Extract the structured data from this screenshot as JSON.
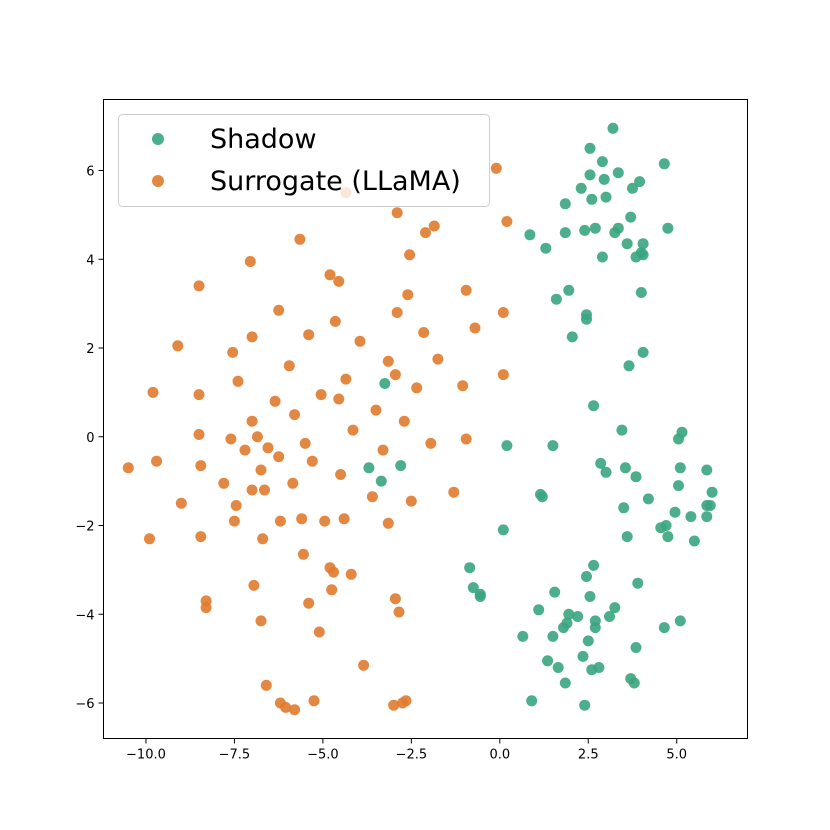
{
  "chart_data": {
    "type": "scatter",
    "title": "",
    "xlabel": "",
    "ylabel": "",
    "xlim": [
      -11.2,
      7.0
    ],
    "ylim": [
      -6.8,
      7.6
    ],
    "xticks": [
      -10.0,
      -7.5,
      -5.0,
      -2.5,
      0.0,
      2.5,
      5.0
    ],
    "xtick_labels": [
      "−10.0",
      "−7.5",
      "−5.0",
      "−2.5",
      "0.0",
      "2.5",
      "5.0"
    ],
    "yticks": [
      -6,
      -4,
      -2,
      0,
      2,
      4,
      6
    ],
    "ytick_labels": [
      "−6",
      "−4",
      "−2",
      "0",
      "2",
      "4",
      "6"
    ],
    "grid": false,
    "legend_position": "top-left",
    "series": [
      {
        "name": "Surrogate (LLaMA)",
        "color": "#e07b2f",
        "points": [
          [
            -10.5,
            -0.7
          ],
          [
            -9.9,
            -2.3
          ],
          [
            -9.8,
            1.0
          ],
          [
            -9.7,
            -0.55
          ],
          [
            -9.1,
            2.05
          ],
          [
            -9.0,
            -1.5
          ],
          [
            -8.5,
            3.4
          ],
          [
            -8.5,
            0.95
          ],
          [
            -8.5,
            0.05
          ],
          [
            -8.45,
            -0.65
          ],
          [
            -8.45,
            -2.25
          ],
          [
            -8.3,
            -3.7
          ],
          [
            -8.3,
            -3.85
          ],
          [
            -7.8,
            -1.05
          ],
          [
            -7.6,
            -0.05
          ],
          [
            -7.55,
            1.9
          ],
          [
            -7.5,
            -1.9
          ],
          [
            -7.45,
            -1.55
          ],
          [
            -7.4,
            1.25
          ],
          [
            -7.2,
            -0.3
          ],
          [
            -7.05,
            3.95
          ],
          [
            -7.0,
            2.25
          ],
          [
            -7.0,
            0.35
          ],
          [
            -7.0,
            -1.2
          ],
          [
            -6.95,
            -3.35
          ],
          [
            -6.85,
            0.0
          ],
          [
            -6.75,
            -4.15
          ],
          [
            -6.75,
            -0.75
          ],
          [
            -6.7,
            -2.3
          ],
          [
            -6.65,
            -1.2
          ],
          [
            -6.6,
            -5.6
          ],
          [
            -6.55,
            -0.25
          ],
          [
            -6.35,
            0.8
          ],
          [
            -6.25,
            2.85
          ],
          [
            -6.25,
            -0.45
          ],
          [
            -6.2,
            -1.9
          ],
          [
            -6.2,
            -6.0
          ],
          [
            -6.05,
            -6.1
          ],
          [
            -5.95,
            1.6
          ],
          [
            -5.85,
            -1.05
          ],
          [
            -5.8,
            0.5
          ],
          [
            -5.8,
            -6.15
          ],
          [
            -5.65,
            4.45
          ],
          [
            -5.6,
            -1.85
          ],
          [
            -5.55,
            -2.65
          ],
          [
            -5.5,
            -0.15
          ],
          [
            -5.4,
            2.3
          ],
          [
            -5.4,
            -3.75
          ],
          [
            -5.3,
            -0.55
          ],
          [
            -5.25,
            -5.95
          ],
          [
            -5.1,
            -4.4
          ],
          [
            -5.05,
            0.95
          ],
          [
            -4.95,
            -1.9
          ],
          [
            -4.8,
            3.65
          ],
          [
            -4.8,
            -2.95
          ],
          [
            -4.75,
            -3.45
          ],
          [
            -4.7,
            -3.05
          ],
          [
            -4.65,
            2.6
          ],
          [
            -4.55,
            3.5
          ],
          [
            -4.5,
            -0.85
          ],
          [
            -4.55,
            0.85
          ],
          [
            -4.4,
            -1.85
          ],
          [
            -4.35,
            1.3
          ],
          [
            -4.35,
            5.5
          ],
          [
            -4.15,
            0.15
          ],
          [
            -4.2,
            -3.1
          ],
          [
            -3.95,
            2.15
          ],
          [
            -3.85,
            -5.15
          ],
          [
            -3.6,
            -1.35
          ],
          [
            -3.5,
            0.6
          ],
          [
            -3.3,
            -0.3
          ],
          [
            -3.15,
            1.7
          ],
          [
            -3.15,
            -1.95
          ],
          [
            -3.0,
            -6.05
          ],
          [
            -2.95,
            -3.65
          ],
          [
            -2.95,
            1.4
          ],
          [
            -2.9,
            5.05
          ],
          [
            -2.9,
            2.8
          ],
          [
            -2.85,
            -3.95
          ],
          [
            -2.75,
            -6.0
          ],
          [
            -2.7,
            0.35
          ],
          [
            -2.65,
            -5.95
          ],
          [
            -2.6,
            3.2
          ],
          [
            -2.55,
            4.1
          ],
          [
            -2.5,
            -1.45
          ],
          [
            -2.35,
            1.1
          ],
          [
            -2.15,
            2.35
          ],
          [
            -2.1,
            4.6
          ],
          [
            -1.95,
            -0.15
          ],
          [
            -1.85,
            4.75
          ],
          [
            -1.75,
            1.75
          ],
          [
            -1.3,
            -1.25
          ],
          [
            -1.05,
            1.15
          ],
          [
            -0.95,
            3.3
          ],
          [
            -0.95,
            -0.05
          ],
          [
            -0.7,
            2.45
          ],
          [
            -0.1,
            6.05
          ],
          [
            0.1,
            2.8
          ],
          [
            0.1,
            1.4
          ],
          [
            0.2,
            4.85
          ]
        ]
      },
      {
        "name": "Shadow",
        "color": "#3aa57f",
        "points": [
          [
            -3.25,
            1.2
          ],
          [
            -3.7,
            -0.7
          ],
          [
            -3.35,
            -1.0
          ],
          [
            -2.8,
            -0.65
          ],
          [
            -0.85,
            -2.95
          ],
          [
            -0.75,
            -3.4
          ],
          [
            -0.55,
            -3.55
          ],
          [
            -0.55,
            -3.6
          ],
          [
            0.1,
            -2.1
          ],
          [
            0.2,
            -0.2
          ],
          [
            0.85,
            4.55
          ],
          [
            0.65,
            -4.5
          ],
          [
            0.9,
            -5.95
          ],
          [
            1.1,
            -3.9
          ],
          [
            1.15,
            -1.3
          ],
          [
            1.2,
            -1.35
          ],
          [
            1.3,
            4.25
          ],
          [
            1.35,
            -5.05
          ],
          [
            1.5,
            -0.2
          ],
          [
            1.5,
            -4.5
          ],
          [
            1.55,
            -3.5
          ],
          [
            1.6,
            3.1
          ],
          [
            1.65,
            -5.2
          ],
          [
            1.8,
            -4.3
          ],
          [
            1.85,
            5.25
          ],
          [
            1.85,
            4.6
          ],
          [
            1.85,
            -5.55
          ],
          [
            1.9,
            -4.2
          ],
          [
            1.95,
            3.3
          ],
          [
            1.95,
            -4.0
          ],
          [
            2.05,
            2.25
          ],
          [
            2.2,
            -4.05
          ],
          [
            2.3,
            5.6
          ],
          [
            2.35,
            -4.95
          ],
          [
            2.4,
            4.65
          ],
          [
            2.4,
            -6.05
          ],
          [
            2.45,
            2.65
          ],
          [
            2.45,
            2.75
          ],
          [
            2.45,
            -3.15
          ],
          [
            2.5,
            -4.6
          ],
          [
            2.55,
            6.5
          ],
          [
            2.55,
            5.9
          ],
          [
            2.55,
            -3.6
          ],
          [
            2.6,
            5.35
          ],
          [
            2.6,
            -5.25
          ],
          [
            2.65,
            0.7
          ],
          [
            2.65,
            -2.9
          ],
          [
            2.7,
            4.7
          ],
          [
            2.7,
            -4.15
          ],
          [
            2.7,
            -4.3
          ],
          [
            2.8,
            -5.2
          ],
          [
            2.85,
            -0.6
          ],
          [
            2.9,
            4.05
          ],
          [
            2.9,
            6.2
          ],
          [
            2.95,
            5.8
          ],
          [
            3.0,
            5.4
          ],
          [
            3.0,
            -0.8
          ],
          [
            3.1,
            -4.05
          ],
          [
            3.2,
            6.95
          ],
          [
            3.25,
            4.6
          ],
          [
            3.25,
            -3.85
          ],
          [
            3.35,
            5.95
          ],
          [
            3.35,
            4.7
          ],
          [
            3.45,
            0.15
          ],
          [
            3.5,
            -1.6
          ],
          [
            3.55,
            -0.7
          ],
          [
            3.6,
            4.35
          ],
          [
            3.6,
            -2.25
          ],
          [
            3.65,
            1.6
          ],
          [
            3.7,
            4.95
          ],
          [
            3.7,
            -5.45
          ],
          [
            3.75,
            5.6
          ],
          [
            3.8,
            -5.55
          ],
          [
            3.85,
            4.05
          ],
          [
            3.85,
            -0.9
          ],
          [
            3.85,
            -4.75
          ],
          [
            3.9,
            -3.3
          ],
          [
            3.95,
            5.75
          ],
          [
            4.0,
            4.15
          ],
          [
            4.0,
            3.25
          ],
          [
            4.05,
            4.35
          ],
          [
            4.05,
            1.9
          ],
          [
            4.05,
            4.1
          ],
          [
            4.2,
            -1.4
          ],
          [
            4.55,
            -2.05
          ],
          [
            4.65,
            6.15
          ],
          [
            4.65,
            -4.3
          ],
          [
            4.7,
            -2.0
          ],
          [
            4.75,
            4.7
          ],
          [
            4.75,
            -2.25
          ],
          [
            4.95,
            -1.7
          ],
          [
            5.05,
            -0.05
          ],
          [
            5.05,
            -1.1
          ],
          [
            5.1,
            -0.7
          ],
          [
            5.1,
            -4.15
          ],
          [
            5.15,
            0.1
          ],
          [
            5.4,
            -1.8
          ],
          [
            5.5,
            -2.35
          ],
          [
            5.85,
            -0.75
          ],
          [
            5.85,
            -1.55
          ],
          [
            5.85,
            -1.8
          ],
          [
            5.95,
            -1.55
          ],
          [
            6.0,
            -1.25
          ]
        ]
      }
    ]
  }
}
